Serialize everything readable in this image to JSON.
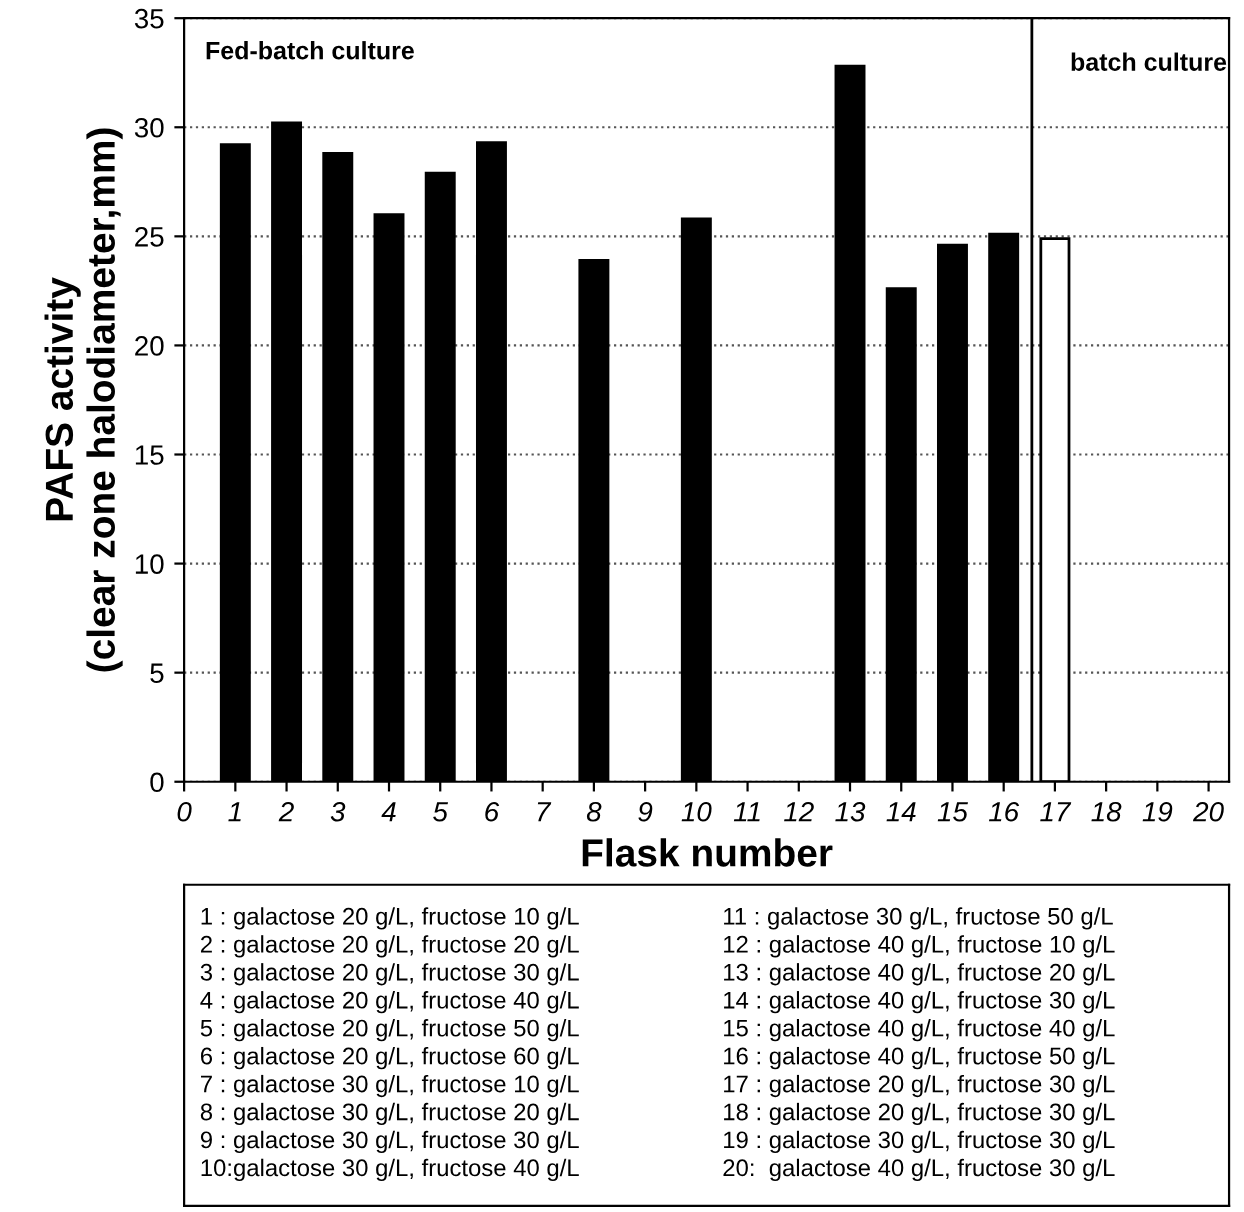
{
  "chart_data": {
    "type": "bar",
    "xlabel": "Flask number",
    "ylabel": "PAFS activity\n(clear zone halodiameter,mm)",
    "x": [
      1,
      2,
      3,
      4,
      5,
      6,
      7,
      8,
      9,
      10,
      11,
      12,
      13,
      14,
      15,
      16,
      17
    ],
    "values": [
      29.2,
      30.2,
      28.8,
      26.0,
      27.9,
      29.3,
      null,
      23.9,
      null,
      25.8,
      null,
      null,
      32.8,
      22.6,
      24.6,
      25.1,
      24.9
    ],
    "colors": [
      "#000000",
      "#000000",
      "#000000",
      "#000000",
      "#000000",
      "#000000",
      "#000000",
      "#000000",
      "#000000",
      "#000000",
      "#000000",
      "#000000",
      "#000000",
      "#000000",
      "#000000",
      "#000000",
      "#ffffff"
    ],
    "xlim": [
      0,
      20.4
    ],
    "xticks": [
      0,
      1,
      2,
      3,
      4,
      5,
      6,
      7,
      8,
      9,
      10,
      11,
      12,
      13,
      14,
      15,
      16,
      17,
      18,
      19,
      20
    ],
    "ylim": [
      0,
      35
    ],
    "yticks": [
      0,
      5,
      10,
      15,
      20,
      25,
      30,
      35
    ],
    "grid": "y",
    "ref_lines": [
      {
        "axis": "x",
        "value": 16.55,
        "color": "#000000",
        "line_style": "solid"
      }
    ],
    "annotations": [
      "Fed-batch culture",
      "batch culture",
      "1 : galactose 20 g/L, fructose 10 g/L",
      "2 : galactose 20 g/L, fructose 20 g/L",
      "3 : galactose 20 g/L, fructose 30 g/L",
      "4 : galactose 20 g/L, fructose 40 g/L",
      "5 : galactose 20 g/L, fructose 50 g/L",
      "6 : galactose 20 g/L, fructose 60 g/L",
      "7 : galactose 30 g/L, fructose 10 g/L",
      "8 : galactose 30 g/L, fructose 20 g/L",
      "9 : galactose 30 g/L, fructose 30 g/L",
      "10:galactose 30 g/L, fructose 40 g/L",
      "11 : galactose 30 g/L, fructose 50 g/L",
      "12 : galactose 40 g/L, fructose 10 g/L",
      "13 : galactose 40 g/L, fructose 20 g/L",
      "14 : galactose 40 g/L, fructose 30 g/L",
      "15 : galactose 40 g/L, fructose 40 g/L",
      "16 : galactose 40 g/L, fructose 50 g/L",
      "17 : galactose 20 g/L, fructose 30 g/L",
      "18 : galactose 20 g/L, fructose 30 g/L",
      "19 : galactose 30 g/L, fructose 30 g/L",
      "20:  galactose 40 g/L, fructose 30 g/L"
    ]
  }
}
